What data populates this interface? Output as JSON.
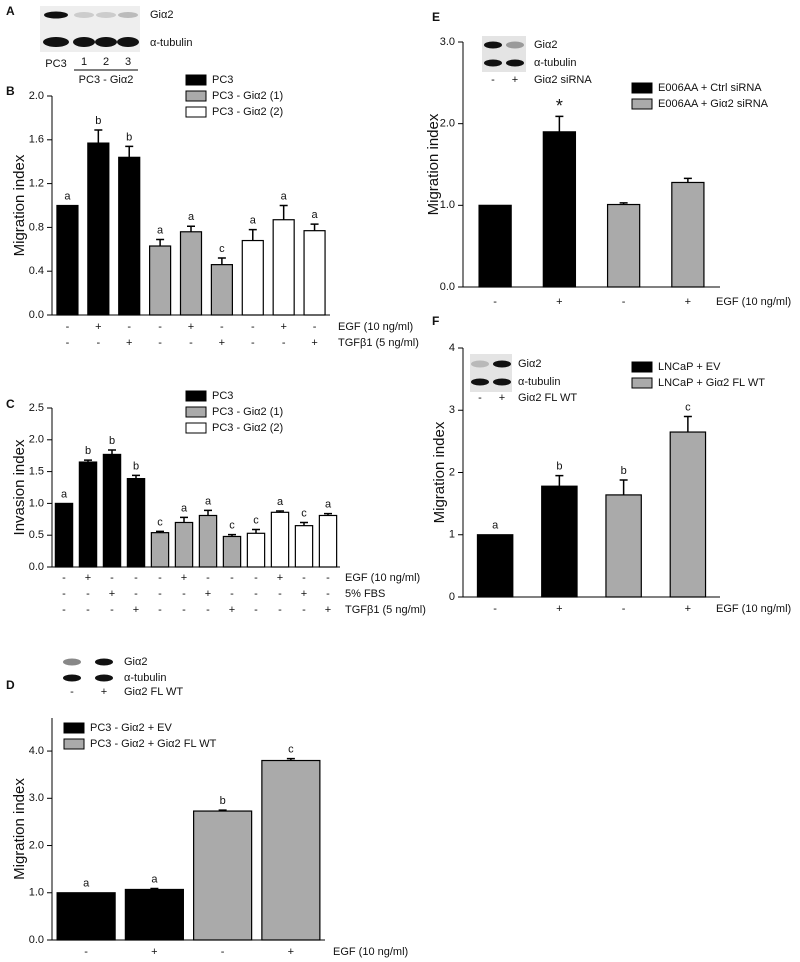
{
  "figure_a": {
    "panel_label": "A",
    "rows": [
      "Giα2",
      "α-tubulin"
    ],
    "lanes": [
      "PC3",
      "1",
      "2",
      "3"
    ],
    "group_label": "PC3 - Giα2"
  },
  "chart_data": [
    {
      "type": "bar",
      "panel_label": "B",
      "y_label": "Migration index",
      "ylim": [
        0,
        2.0
      ],
      "yticks": [
        {
          "value": 0,
          "label": "0.0"
        },
        0.4,
        0.8,
        1.2,
        1.6,
        {
          "value": 2,
          "label": "2.0"
        }
      ],
      "conditions": [
        {
          "label": "EGF (10 ng/ml)",
          "signs": [
            "-",
            "+",
            "-",
            "-",
            "+",
            "-",
            "-",
            "+",
            "-"
          ]
        },
        {
          "label": "TGFβ1 (5 ng/ml)",
          "signs": [
            "-",
            "-",
            "+",
            "-",
            "-",
            "+",
            "-",
            "-",
            "+"
          ]
        }
      ],
      "series": [
        {
          "name": "PC3",
          "color": "#000000",
          "values": [
            1.0,
            1.57,
            1.44,
            null,
            null,
            null,
            null,
            null,
            null
          ],
          "errors": [
            null,
            0.12,
            0.1,
            null,
            null,
            null,
            null,
            null,
            null
          ],
          "letters": [
            "a",
            "b",
            "b",
            null,
            null,
            null,
            null,
            null,
            null
          ]
        },
        {
          "name": "PC3 - Giα2 (1)",
          "color": "#aaaaaa",
          "values": [
            null,
            null,
            null,
            0.63,
            0.76,
            0.46,
            null,
            null,
            null
          ],
          "errors": [
            null,
            null,
            null,
            0.06,
            0.05,
            0.06,
            null,
            null,
            null
          ],
          "letters": [
            null,
            null,
            null,
            "a",
            "a",
            "c",
            null,
            null,
            null
          ]
        },
        {
          "name": "PC3 - Giα2 (2)",
          "color": "#ffffff",
          "values": [
            null,
            null,
            null,
            null,
            null,
            null,
            0.68,
            0.87,
            0.77
          ],
          "errors": [
            null,
            null,
            null,
            null,
            null,
            null,
            0.1,
            0.13,
            0.06
          ],
          "letters": [
            null,
            null,
            null,
            null,
            null,
            null,
            "a",
            "a",
            "a"
          ]
        }
      ]
    },
    {
      "type": "bar",
      "panel_label": "C",
      "y_label": "Invasion index",
      "ylim": [
        0,
        2.5
      ],
      "yticks": [
        {
          "value": 0,
          "label": "0.0"
        },
        0.5,
        {
          "value": 1,
          "label": "1.0"
        },
        1.5,
        {
          "value": 2,
          "label": "2.0"
        },
        2.5
      ],
      "conditions": [
        {
          "label": "EGF (10 ng/ml)",
          "signs": [
            "-",
            "+",
            "-",
            "-",
            "-",
            "+",
            "-",
            "-",
            "-",
            "+",
            "-",
            "-"
          ]
        },
        {
          "label": "5% FBS",
          "signs": [
            "-",
            "-",
            "+",
            "-",
            "-",
            "-",
            "+",
            "-",
            "-",
            "-",
            "+",
            "-"
          ]
        },
        {
          "label": "TGFβ1 (5 ng/ml)",
          "signs": [
            "-",
            "-",
            "-",
            "+",
            "-",
            "-",
            "-",
            "+",
            "-",
            "-",
            "-",
            "+"
          ]
        }
      ],
      "series": [
        {
          "name": "PC3",
          "color": "#000000",
          "values": [
            1.0,
            1.65,
            1.77,
            1.39,
            null,
            null,
            null,
            null,
            null,
            null,
            null,
            null
          ],
          "errors": [
            null,
            0.03,
            0.07,
            0.05,
            null,
            null,
            null,
            null,
            null,
            null,
            null,
            null
          ],
          "letters": [
            "a",
            "b",
            "b",
            "b",
            null,
            null,
            null,
            null,
            null,
            null,
            null,
            null
          ]
        },
        {
          "name": "PC3 - Giα2 (1)",
          "color": "#aaaaaa",
          "values": [
            null,
            null,
            null,
            null,
            0.54,
            0.7,
            0.81,
            0.48,
            null,
            null,
            null,
            null
          ],
          "errors": [
            null,
            null,
            null,
            null,
            0.02,
            0.08,
            0.08,
            0.03,
            null,
            null,
            null,
            null
          ],
          "letters": [
            null,
            null,
            null,
            null,
            "c",
            "a",
            "a",
            "c",
            null,
            null,
            null,
            null
          ]
        },
        {
          "name": "PC3 - Giα2 (2)",
          "color": "#ffffff",
          "values": [
            null,
            null,
            null,
            null,
            null,
            null,
            null,
            null,
            0.53,
            0.86,
            0.65,
            0.81
          ],
          "errors": [
            null,
            null,
            null,
            null,
            null,
            null,
            null,
            null,
            0.06,
            0.02,
            0.05,
            0.03
          ],
          "letters": [
            null,
            null,
            null,
            null,
            null,
            null,
            null,
            null,
            "c",
            "a",
            "c",
            "a"
          ]
        }
      ]
    },
    {
      "type": "bar",
      "panel_label": "D",
      "y_label": "Migration index",
      "ylim": [
        0,
        4.7
      ],
      "yticks": [
        {
          "value": 0,
          "label": "0.0"
        },
        {
          "value": 1,
          "label": "1.0"
        },
        {
          "value": 2,
          "label": "2.0"
        },
        {
          "value": 3,
          "label": "3.0"
        },
        {
          "value": 4,
          "label": "4.0"
        }
      ],
      "blot": {
        "rows": [
          "Giα2",
          "α-tubulin"
        ],
        "lanes": [
          "-",
          "+"
        ],
        "lane_title": "Giα2 FL WT"
      },
      "conditions": [
        {
          "label": "EGF (10 ng/ml)",
          "signs": [
            "-",
            "+",
            "-",
            "+"
          ]
        }
      ],
      "series": [
        {
          "name": "PC3 - Giα2 + EV",
          "color": "#000000",
          "values": [
            1.0,
            1.07,
            null,
            null
          ],
          "errors": [
            null,
            0.02,
            null,
            null
          ],
          "letters": [
            "a",
            "a",
            null,
            null
          ]
        },
        {
          "name": "PC3 - Giα2 + Giα2 FL WT",
          "color": "#aaaaaa",
          "values": [
            null,
            null,
            2.73,
            3.8
          ],
          "errors": [
            null,
            null,
            0.02,
            0.04
          ],
          "letters": [
            null,
            null,
            "b",
            "c"
          ]
        }
      ]
    },
    {
      "type": "bar",
      "panel_label": "E",
      "y_label": "Migration index",
      "ylim": [
        0,
        3.0
      ],
      "yticks": [
        {
          "value": 0,
          "label": "0.0"
        },
        {
          "value": 1,
          "label": "1.0"
        },
        {
          "value": 2,
          "label": "2.0"
        },
        {
          "value": 3,
          "label": "3.0"
        }
      ],
      "blot": {
        "rows": [
          "Giα2",
          "α-tubulin"
        ],
        "lanes": [
          "-",
          "+"
        ],
        "lane_title": "Giα2 siRNA"
      },
      "conditions": [
        {
          "label": "EGF (10 ng/ml)",
          "signs": [
            "-",
            "+",
            "-",
            "+"
          ]
        }
      ],
      "series": [
        {
          "name": "E006AA + Ctrl siRNA",
          "color": "#000000",
          "values": [
            1.0,
            1.9,
            null,
            null
          ],
          "errors": [
            null,
            0.19,
            null,
            null
          ],
          "letters": [
            null,
            "*",
            null,
            null
          ]
        },
        {
          "name": "E006AA + Giα2 siRNA",
          "color": "#aaaaaa",
          "values": [
            null,
            null,
            1.01,
            1.28
          ],
          "errors": [
            null,
            null,
            0.02,
            0.05
          ],
          "letters": [
            null,
            null,
            null,
            null
          ]
        }
      ]
    },
    {
      "type": "bar",
      "panel_label": "F",
      "y_label": "Migration index",
      "ylim": [
        0,
        4
      ],
      "yticks": [
        0,
        1,
        2,
        3,
        4
      ],
      "blot": {
        "rows": [
          "Giα2",
          "α-tubulin"
        ],
        "lanes": [
          "-",
          "+"
        ],
        "lane_title": "Giα2 FL WT"
      },
      "conditions": [
        {
          "label": "EGF (10 ng/ml)",
          "signs": [
            "-",
            "+",
            "-",
            "+"
          ]
        }
      ],
      "series": [
        {
          "name": "LNCaP + EV",
          "color": "#000000",
          "values": [
            1.0,
            1.78,
            null,
            null
          ],
          "errors": [
            null,
            0.17,
            null,
            null
          ],
          "letters": [
            "a",
            "b",
            null,
            null
          ]
        },
        {
          "name": "LNCaP + Giα2 FL WT",
          "color": "#aaaaaa",
          "values": [
            null,
            null,
            1.64,
            2.65
          ],
          "errors": [
            null,
            null,
            0.24,
            0.25
          ],
          "letters": [
            null,
            null,
            "b",
            "c"
          ]
        }
      ]
    }
  ]
}
